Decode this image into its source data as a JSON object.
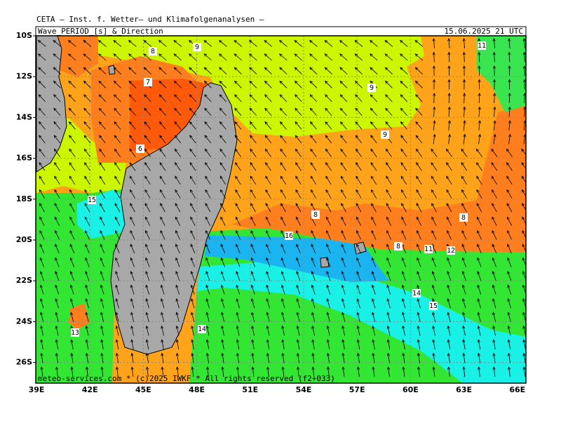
{
  "header": "CETA — Inst. f. Wetter— und Klimafolgenanalysen —",
  "title": "Wave_PERIOD_[s]_&_Direction",
  "date": "15.06.2025 21 UTC",
  "lat_labels": [
    "10S",
    "12S",
    "14S",
    "16S",
    "18S",
    "20S",
    "22S",
    "24S",
    "26S"
  ],
  "lon_labels": [
    "39E",
    "42E",
    "45E",
    "48E",
    "51E",
    "54E",
    "57E",
    "60E",
    "63E",
    "66E"
  ],
  "contour_labels": [
    "8",
    "9",
    "7",
    "6",
    "9",
    "9",
    "11",
    "15",
    "16",
    "8",
    "8",
    "8",
    "11",
    "12",
    "14",
    "15",
    "13",
    "14"
  ],
  "copyright": "meteo-services.com * (c)2025 IWKF * All rights reserved (f2+033)"
}
